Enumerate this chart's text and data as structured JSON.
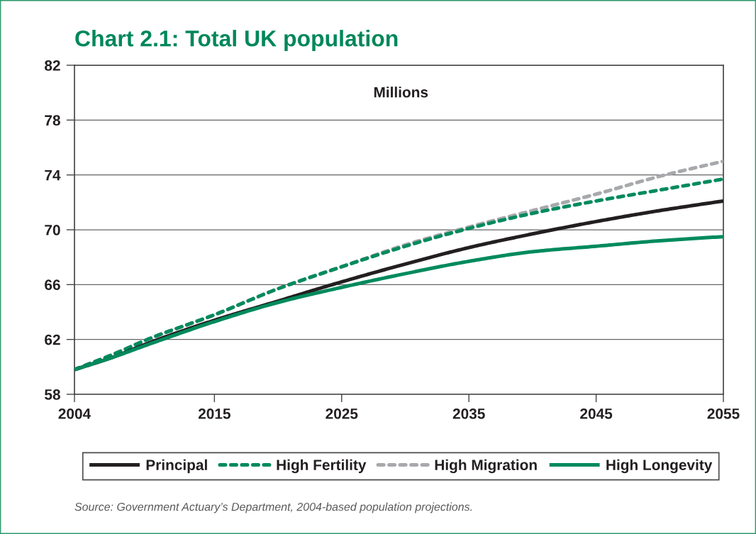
{
  "chart_data": {
    "type": "line",
    "title": "Chart 2.1: Total UK population",
    "ylabel": "Millions",
    "annotations": [
      "Source: Government Actuary’s Department, 2004-based population projections."
    ],
    "x": [
      2004,
      2007,
      2010,
      2015,
      2020,
      2025,
      2030,
      2035,
      2040,
      2045,
      2050,
      2055
    ],
    "series": [
      {
        "name": "Principal",
        "color": "#231f20",
        "line_style": "solid",
        "values": [
          59.8,
          60.7,
          61.8,
          63.4,
          64.8,
          66.2,
          67.5,
          68.7,
          69.7,
          70.6,
          71.4,
          72.1
        ]
      },
      {
        "name": "High Fertility",
        "color": "#008a5e",
        "line_style": "dashed",
        "values": [
          59.8,
          60.9,
          62.1,
          63.8,
          65.7,
          67.3,
          68.8,
          70.1,
          71.2,
          72.1,
          72.9,
          73.7
        ]
      },
      {
        "name": "High Migration",
        "color": "#a7a9ac",
        "line_style": "dashed",
        "values": [
          59.8,
          60.9,
          62.1,
          63.8,
          65.7,
          67.3,
          68.9,
          70.2,
          71.4,
          72.6,
          73.9,
          75.0
        ]
      },
      {
        "name": "High Longevity",
        "color": "#008a5e",
        "line_style": "solid",
        "values": [
          59.8,
          60.7,
          61.7,
          63.3,
          64.7,
          65.8,
          66.8,
          67.7,
          68.4,
          68.8,
          69.2,
          69.5
        ]
      }
    ],
    "xlim": [
      2004,
      2055
    ],
    "xticks": [
      2004,
      2015,
      2025,
      2035,
      2045,
      2055
    ],
    "ylim": [
      58,
      82
    ],
    "yticks": [
      58,
      62,
      66,
      70,
      74,
      78,
      82
    ],
    "grid": "y",
    "legend": "bottom",
    "marker": "none"
  }
}
